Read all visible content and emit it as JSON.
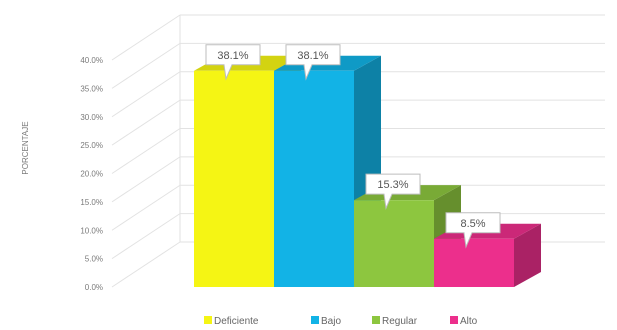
{
  "chart_data": {
    "type": "bar",
    "categories": [
      "Deficiente",
      "Bajo",
      "Regular",
      "Alto"
    ],
    "values": [
      38.1,
      38.1,
      15.3,
      8.5
    ],
    "data_labels": [
      "38.1%",
      "38.1%",
      "15.3%",
      "8.5%"
    ],
    "title": "",
    "xlabel": "",
    "ylabel": "PORCENTAJE",
    "ylim": [
      0,
      40
    ],
    "yticks": [
      "0.0%",
      "5.0%",
      "10.0%",
      "15.0%",
      "20.0%",
      "25.0%",
      "30.0%",
      "35.0%",
      "40.0%"
    ],
    "grid": true,
    "legend_position": "bottom",
    "style": "3d-columns",
    "colors": {
      "Deficiente": "#f5f514",
      "Bajo": "#12b3e6",
      "Regular": "#8dc63f",
      "Alto": "#ec2f8c"
    }
  }
}
